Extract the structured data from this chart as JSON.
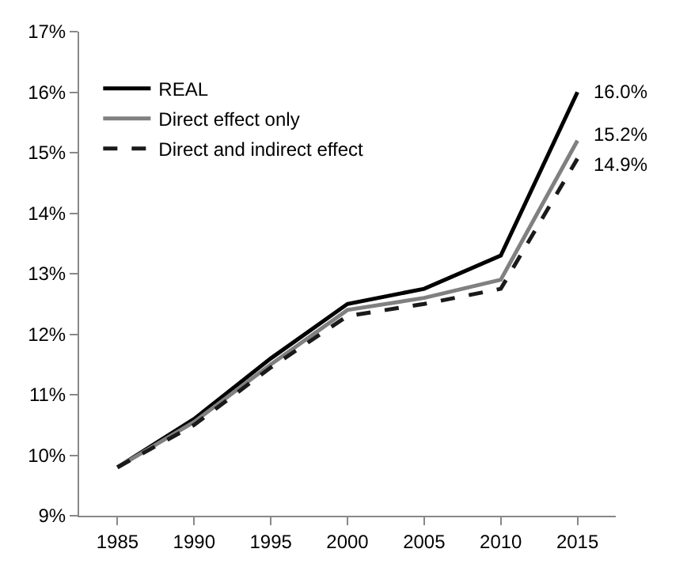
{
  "chart_data": {
    "type": "line",
    "categories": [
      "1985",
      "1990",
      "1995",
      "2000",
      "2005",
      "2010",
      "2015"
    ],
    "series": [
      {
        "name": "REAL",
        "color": "#000000",
        "line_style": "solid",
        "values": [
          9.8,
          10.6,
          11.6,
          12.5,
          12.75,
          13.3,
          16.0
        ],
        "value_labels": [
          null,
          null,
          null,
          null,
          null,
          null,
          "16.0%"
        ]
      },
      {
        "name": "Direct effect only",
        "color": "#808080",
        "line_style": "solid",
        "values": [
          9.8,
          10.55,
          11.5,
          12.4,
          12.6,
          12.9,
          15.2
        ],
        "value_labels": [
          null,
          null,
          null,
          null,
          null,
          null,
          "15.2%"
        ]
      },
      {
        "name": "Direct and indirect effect",
        "color": "#1a1a1a",
        "line_style": "dashed",
        "values": [
          9.8,
          10.5,
          11.45,
          12.3,
          12.5,
          12.75,
          14.9
        ],
        "value_labels": [
          null,
          null,
          null,
          null,
          null,
          null,
          "14.9%"
        ]
      }
    ],
    "ylim": [
      9,
      17
    ],
    "yticks": [
      {
        "value": 9,
        "label": "9%"
      },
      {
        "value": 10,
        "label": "10%"
      },
      {
        "value": 11,
        "label": "11%"
      },
      {
        "value": 12,
        "label": "12%"
      },
      {
        "value": 13,
        "label": "13%"
      },
      {
        "value": 14,
        "label": "14%"
      },
      {
        "value": 15,
        "label": "15%"
      },
      {
        "value": 16,
        "label": "16%"
      },
      {
        "value": 17,
        "label": "17%"
      }
    ],
    "legend": "top left",
    "marker": "none"
  }
}
